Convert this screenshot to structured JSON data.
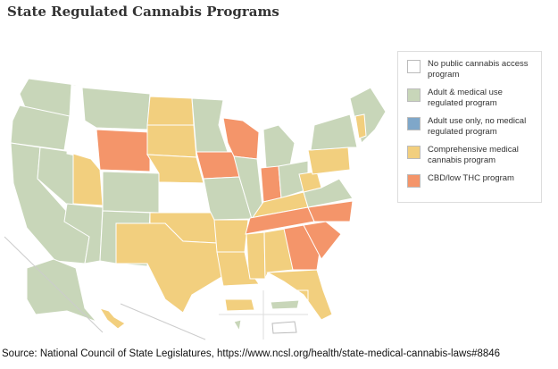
{
  "title": "State Regulated Cannabis Programs",
  "legend": [
    {
      "label": "No public cannabis access program",
      "color": "#ffffff"
    },
    {
      "label": "Adult & medical use regulated program",
      "color": "#c8d6b9"
    },
    {
      "label": "Adult use only, no medical regulated program",
      "color": "#7fa7c9"
    },
    {
      "label": "Comprehensive medical cannabis program",
      "color": "#f2cf7e"
    },
    {
      "label": "CBD/low THC program",
      "color": "#f4956a"
    }
  ],
  "source": "Source: National Council of State Legislatures, https://www.ncsl.org/health/state-medical-cannabis-laws#8846"
}
